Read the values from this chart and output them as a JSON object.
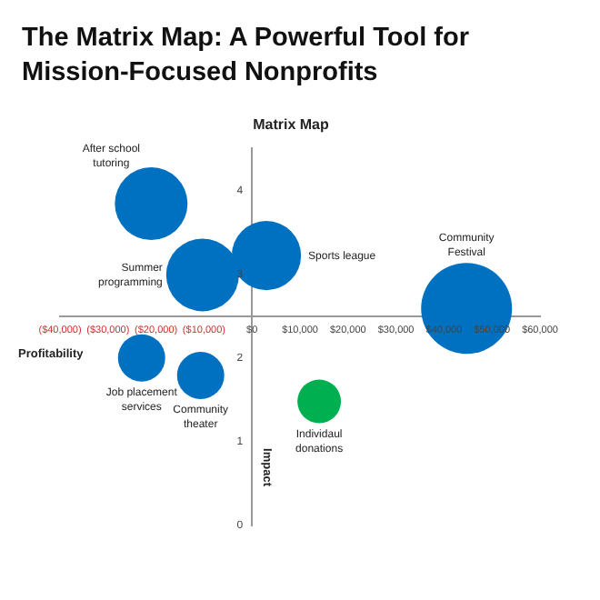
{
  "chart_data": {
    "type": "bubble",
    "title": "The Matrix Map: A Powerful Tool for Mission-Focused Nonprofits",
    "subtitle": "Matrix Map",
    "xlabel": "Profitability",
    "ylabel": "Impact",
    "x": [
      -21000,
      -10300,
      3000,
      44700,
      -23000,
      -10700,
      14000
    ],
    "values": [
      3.84,
      2.99,
      3.22,
      2.59,
      2.0,
      1.79,
      1.48
    ],
    "sizes": [
      0.64,
      0.64,
      0.58,
      1,
      0.27,
      0.27,
      0.23
    ],
    "colors": [
      "#0070c0",
      "#0070c0",
      "#0070c0",
      "#0070c0",
      "#0070c0",
      "#0070c0",
      "#00b050"
    ],
    "xlim": [
      -40000,
      60000
    ],
    "xticks": [
      {
        "value": -40000,
        "label": "($40,000)"
      },
      {
        "value": -30000,
        "label": "($30,000)"
      },
      {
        "value": -20000,
        "label": "($20,000)"
      },
      {
        "value": -10000,
        "label": "($10,000)"
      },
      {
        "value": 0,
        "label": "$0"
      },
      {
        "value": 10000,
        "label": "$10,000"
      },
      {
        "value": 20000,
        "label": "$20,000"
      },
      {
        "value": 30000,
        "label": "$30,000"
      },
      {
        "value": 40000,
        "label": "$40,000"
      },
      {
        "value": 50000,
        "label": "$50,000"
      },
      {
        "value": 60000,
        "label": "$60,000"
      }
    ],
    "ylim": [
      0,
      4.5
    ],
    "yticks": [
      0,
      1,
      2,
      3,
      4
    ],
    "grid": false,
    "legend": false,
    "annotations": [
      "After school tutoring",
      "Summer programming",
      "Sports league",
      "Community Festival",
      "Job placement services",
      "Community theater",
      "Individaul donations"
    ]
  }
}
